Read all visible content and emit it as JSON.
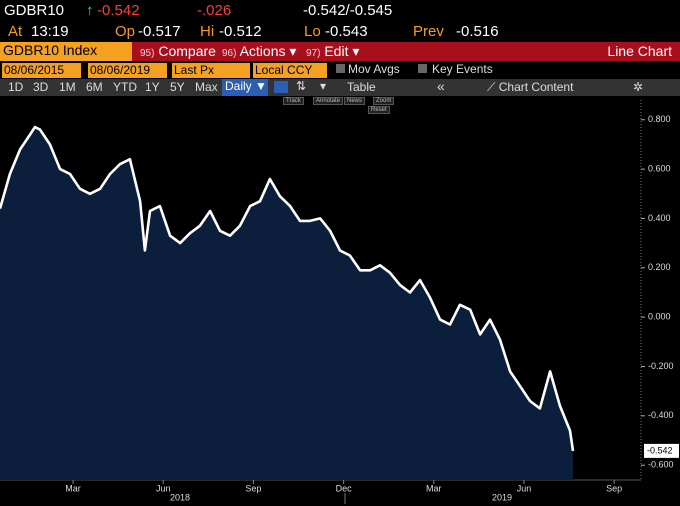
{
  "header": {
    "ticker": "GDBR10",
    "arrow": "↑",
    "last": "-0.542",
    "change": "-.026",
    "bid_ask": "-0.542/-0.545",
    "at_label": "At",
    "time": "13:19",
    "open_label": "Op",
    "open": "-0.517",
    "high_label": "Hi",
    "high": "-0.512",
    "low_label": "Lo",
    "low": "-0.543",
    "prev_label": "Prev",
    "prev": "-0.516"
  },
  "menu": {
    "security": "GDBR10 Index",
    "compare_num": "95)",
    "compare": "Compare",
    "actions_num": "96)",
    "actions": "Actions ▾",
    "edit_num": "97)",
    "edit": "Edit ▾",
    "view": "Line Chart"
  },
  "settings": {
    "start_date": "08/06/2015",
    "end_date": "08/06/2019",
    "field": "Last Px",
    "currency": "Local CCY",
    "mov_avgs": "Mov Avgs",
    "key_events": "Key Events"
  },
  "toolbar": {
    "ranges": [
      "1D",
      "3D",
      "1M",
      "6M",
      "YTD",
      "1Y",
      "5Y",
      "Max"
    ],
    "frequency": "Daily ▼",
    "table": "Table",
    "back": "«",
    "chart_content": "Chart Content"
  },
  "tools": [
    "Track",
    "Annotate",
    "News",
    "Zoom",
    "Reset"
  ],
  "chart_data": {
    "type": "line",
    "series": [
      {
        "name": "GDBR10 Index",
        "color": "#ffffff",
        "fill": "#0b1f3c",
        "x": [
          0.57,
          0.9,
          1.24,
          1.57,
          1.73,
          1.9,
          2.23,
          2.57,
          2.9,
          3.23,
          3.56,
          3.9,
          4.23,
          4.56,
          4.89,
          5.23,
          5.39,
          5.56,
          5.89,
          6.23,
          6.56,
          6.89,
          7.22,
          7.56,
          7.89,
          8.22,
          8.55,
          8.89,
          9.22,
          9.55,
          9.88,
          10.22,
          10.55,
          10.88,
          11.22,
          11.55,
          11.88,
          12.21,
          12.55,
          12.88,
          13.21,
          13.54,
          13.88,
          14.21,
          14.54,
          14.87,
          15.21,
          15.54,
          15.87,
          16.21,
          16.54,
          16.87,
          17.2,
          17.54,
          17.87,
          18.2,
          18.53,
          18.87,
          19.2,
          19.53,
          19.63
        ],
        "values": [
          0.44,
          0.58,
          0.68,
          0.74,
          0.77,
          0.76,
          0.7,
          0.6,
          0.58,
          0.52,
          0.5,
          0.52,
          0.58,
          0.62,
          0.64,
          0.47,
          0.27,
          0.43,
          0.45,
          0.33,
          0.3,
          0.34,
          0.37,
          0.43,
          0.35,
          0.33,
          0.37,
          0.45,
          0.47,
          0.56,
          0.49,
          0.45,
          0.39,
          0.39,
          0.4,
          0.35,
          0.27,
          0.25,
          0.19,
          0.19,
          0.21,
          0.18,
          0.13,
          0.1,
          0.15,
          0.08,
          -0.01,
          -0.03,
          0.05,
          0.03,
          -0.07,
          -0.01,
          -0.09,
          -0.22,
          -0.28,
          -0.34,
          -0.37,
          -0.22,
          -0.36,
          -0.46,
          -0.542
        ]
      }
    ],
    "xlim": [
      0.57,
      21.86
    ],
    "xticks": [
      {
        "value": 3,
        "label": "Mar"
      },
      {
        "value": 6,
        "label": "Jun"
      },
      {
        "value": 9,
        "label": "Sep"
      },
      {
        "value": 12,
        "label": "Dec"
      },
      {
        "value": 15,
        "label": "Mar"
      },
      {
        "value": 18,
        "label": "Jun"
      },
      {
        "value": 21,
        "label": "Sep"
      }
    ],
    "year_labels": [
      "2018",
      "2019"
    ],
    "ylim": [
      -0.66,
      0.88
    ],
    "yticks": [
      {
        "value": 0.8,
        "label": "0.800"
      },
      {
        "value": 0.6,
        "label": "0.600"
      },
      {
        "value": 0.4,
        "label": "0.400"
      },
      {
        "value": 0.2,
        "label": "0.200"
      },
      {
        "value": 0,
        "label": "0.000"
      },
      {
        "value": -0.2,
        "label": "-0.200"
      },
      {
        "value": -0.4,
        "label": "-0.400"
      },
      {
        "value": -0.6,
        "label": "-0.600"
      }
    ],
    "grid": false
  }
}
